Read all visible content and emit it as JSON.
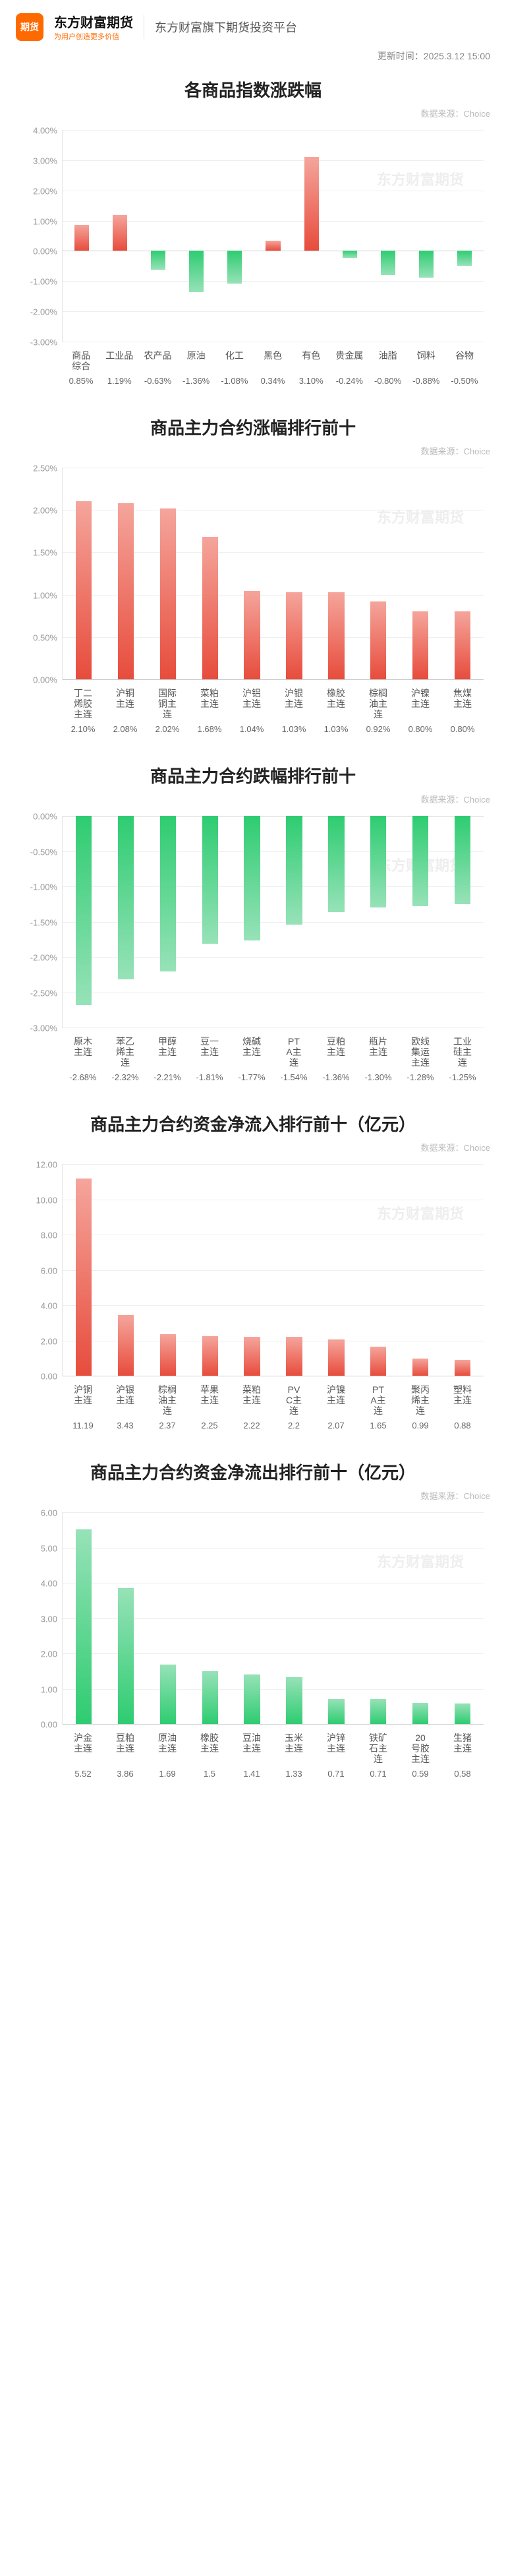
{
  "header": {
    "logo_text": "期货",
    "brand_main": "东方财富期货",
    "brand_sub": "为用户创造更多价值",
    "brand_right": "东方财富旗下期货投资平台"
  },
  "update_label_prefix": "更新时间：",
  "update_time": "2025.3.12 15:00",
  "watermark": "东方财富期货",
  "colors": {
    "up": "#e74c3c",
    "up_light": "#f5a59c",
    "down": "#2ecc71",
    "down_light": "#97e2b8",
    "grid": "#eeeeee",
    "axis": "#e5e5e5"
  },
  "charts": [
    {
      "title": "各商品指数涨跌幅",
      "source": "数据来源：Choice",
      "ymin": -3.0,
      "ymax": 4.0,
      "ystep": 1.0,
      "ysuffix": "%",
      "value_suffix": "%",
      "categories": [
        "商品综合",
        "工业品",
        "农产品",
        "原油",
        "化工",
        "黑色",
        "有色",
        "贵金属",
        "油脂",
        "饲料",
        "谷物"
      ],
      "values": [
        0.85,
        1.19,
        -0.63,
        -1.36,
        -1.08,
        0.34,
        3.1,
        -0.24,
        -0.8,
        -0.88,
        -0.5
      ],
      "bipolar": true
    },
    {
      "title": "商品主力合约涨幅排行前十",
      "source": "数据来源：Choice",
      "ymin": 0.0,
      "ymax": 2.5,
      "ystep": 0.5,
      "ysuffix": "%",
      "value_suffix": "%",
      "categories": [
        "丁二烯胶主连",
        "沪铜主连",
        "国际铜主连",
        "菜粕主连",
        "沪铝主连",
        "沪银主连",
        "橡胶主连",
        "棕榈油主连",
        "沪镍主连",
        "焦煤主连"
      ],
      "values": [
        2.1,
        2.08,
        2.02,
        1.68,
        1.04,
        1.03,
        1.03,
        0.92,
        0.8,
        0.8
      ],
      "color_mode": "up"
    },
    {
      "title": "商品主力合约跌幅排行前十",
      "source": "数据来源：Choice",
      "ymin": -3.0,
      "ymax": 0.0,
      "ystep": 0.5,
      "ysuffix": "%",
      "value_suffix": "%",
      "categories": [
        "原木主连",
        "苯乙烯主连",
        "甲醇主连",
        "豆一主连",
        "烧碱主连",
        "PTA主连",
        "豆粕主连",
        "瓶片主连",
        "欧线集运主连",
        "工业硅主连"
      ],
      "values": [
        -2.68,
        -2.32,
        -2.21,
        -1.81,
        -1.77,
        -1.54,
        -1.36,
        -1.3,
        -1.28,
        -1.25
      ],
      "color_mode": "down",
      "hanging": true
    },
    {
      "title": "商品主力合约资金净流入排行前十（亿元）",
      "source": "数据来源：Choice",
      "ymin": 0.0,
      "ymax": 12.0,
      "ystep": 2.0,
      "ysuffix": "",
      "value_suffix": "",
      "categories": [
        "沪铜主连",
        "沪银主连",
        "棕榈油主连",
        "苹果主连",
        "菜粕主连",
        "PVC主连",
        "沪镍主连",
        "PTA主连",
        "聚丙烯主连",
        "塑料主连"
      ],
      "values": [
        11.19,
        3.43,
        2.37,
        2.25,
        2.22,
        2.2,
        2.07,
        1.65,
        0.99,
        0.88
      ],
      "color_mode": "up"
    },
    {
      "title": "商品主力合约资金净流出排行前十（亿元）",
      "source": "数据来源：Choice",
      "ymin": 0.0,
      "ymax": 6.0,
      "ystep": 1.0,
      "ysuffix": "",
      "value_suffix": "",
      "categories": [
        "沪金主连",
        "豆粕主连",
        "原油主连",
        "橡胶主连",
        "豆油主连",
        "玉米主连",
        "沪锌主连",
        "铁矿石主连",
        "20号胶主连",
        "生猪主连"
      ],
      "values": [
        5.52,
        3.86,
        1.69,
        1.5,
        1.41,
        1.33,
        0.71,
        0.71,
        0.59,
        0.58
      ],
      "color_mode": "down"
    }
  ]
}
